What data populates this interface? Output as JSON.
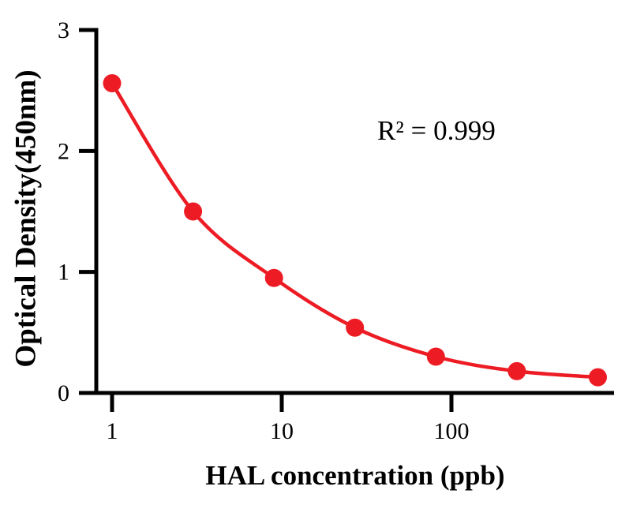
{
  "chart_data": {
    "type": "scatter",
    "title": "",
    "xlabel": "HAL concentration (ppb)",
    "ylabel": "Optical Density(450nm)",
    "annotation": "R² = 0.999",
    "x_scale": "log",
    "y_scale": "linear",
    "xlim": [
      0.64,
      950
    ],
    "ylim": [
      0,
      3
    ],
    "x_ticks": [
      1,
      10,
      100
    ],
    "y_ticks": [
      0,
      1,
      2,
      3
    ],
    "grid": false,
    "legend": "none",
    "x": [
      1,
      3,
      9,
      27,
      81,
      243,
      729
    ],
    "y": [
      2.56,
      1.5,
      0.95,
      0.54,
      0.3,
      0.18,
      0.13
    ],
    "curve": "smooth-fit-through-points",
    "marker": "circle",
    "marker_color": "#ED1C24",
    "line_color": "#ED1C24",
    "axis_color": "#000000",
    "background_color": "#ffffff"
  }
}
